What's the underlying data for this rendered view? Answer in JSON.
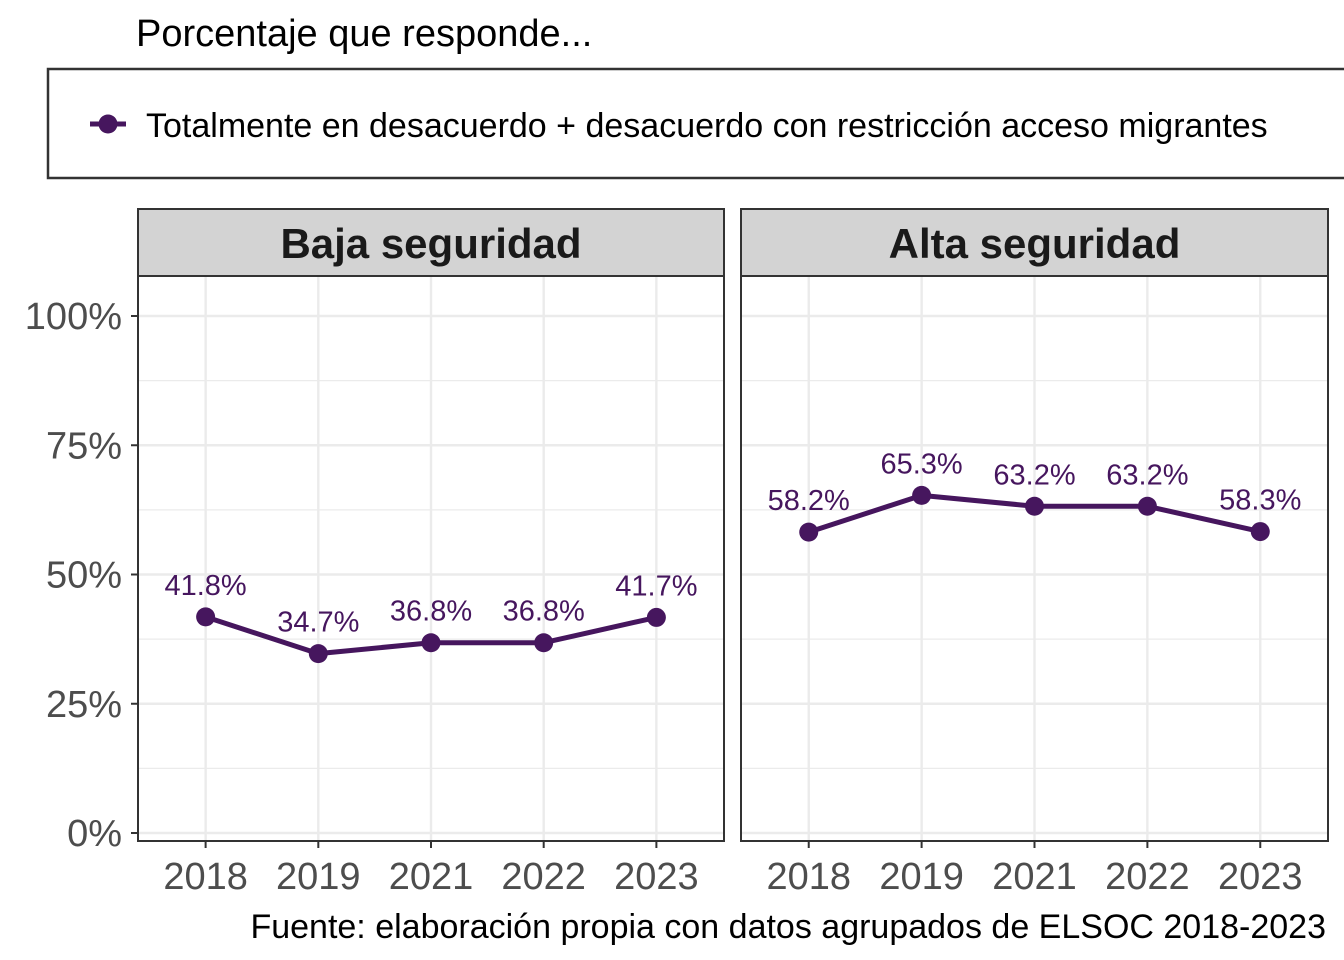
{
  "subtitle": "Porcentaje que responde...",
  "caption": "Fuente: elaboración propia con datos agrupados de ELSOC 2018-2023",
  "colors": {
    "series": "#46165E",
    "strip_fill": "#D3D3D3",
    "grid": "#EBEBEB",
    "axis_text": "#4D4D4D",
    "border": "#333333"
  },
  "chart_data": {
    "type": "line",
    "x": [
      "2018",
      "2019",
      "2021",
      "2022",
      "2023"
    ],
    "ylim": [
      0,
      100
    ],
    "y_ticks": [
      "0%",
      "25%",
      "50%",
      "75%",
      "100%"
    ],
    "y_tick_values": [
      0,
      25,
      50,
      75,
      100
    ],
    "grid": true,
    "legend_position": "top",
    "legend": [
      {
        "label": "Totalmente en desacuerdo + desacuerdo con restricción acceso migrantes"
      }
    ],
    "panels": [
      {
        "title": "Baja seguridad",
        "values": [
          41.8,
          34.7,
          36.8,
          36.8,
          41.7
        ],
        "labels": [
          "41.8%",
          "34.7%",
          "36.8%",
          "36.8%",
          "41.7%"
        ]
      },
      {
        "title": "Alta seguridad",
        "values": [
          58.2,
          65.3,
          63.2,
          63.2,
          58.3
        ],
        "labels": [
          "58.2%",
          "65.3%",
          "63.2%",
          "63.2%",
          "58.3%"
        ]
      }
    ]
  }
}
